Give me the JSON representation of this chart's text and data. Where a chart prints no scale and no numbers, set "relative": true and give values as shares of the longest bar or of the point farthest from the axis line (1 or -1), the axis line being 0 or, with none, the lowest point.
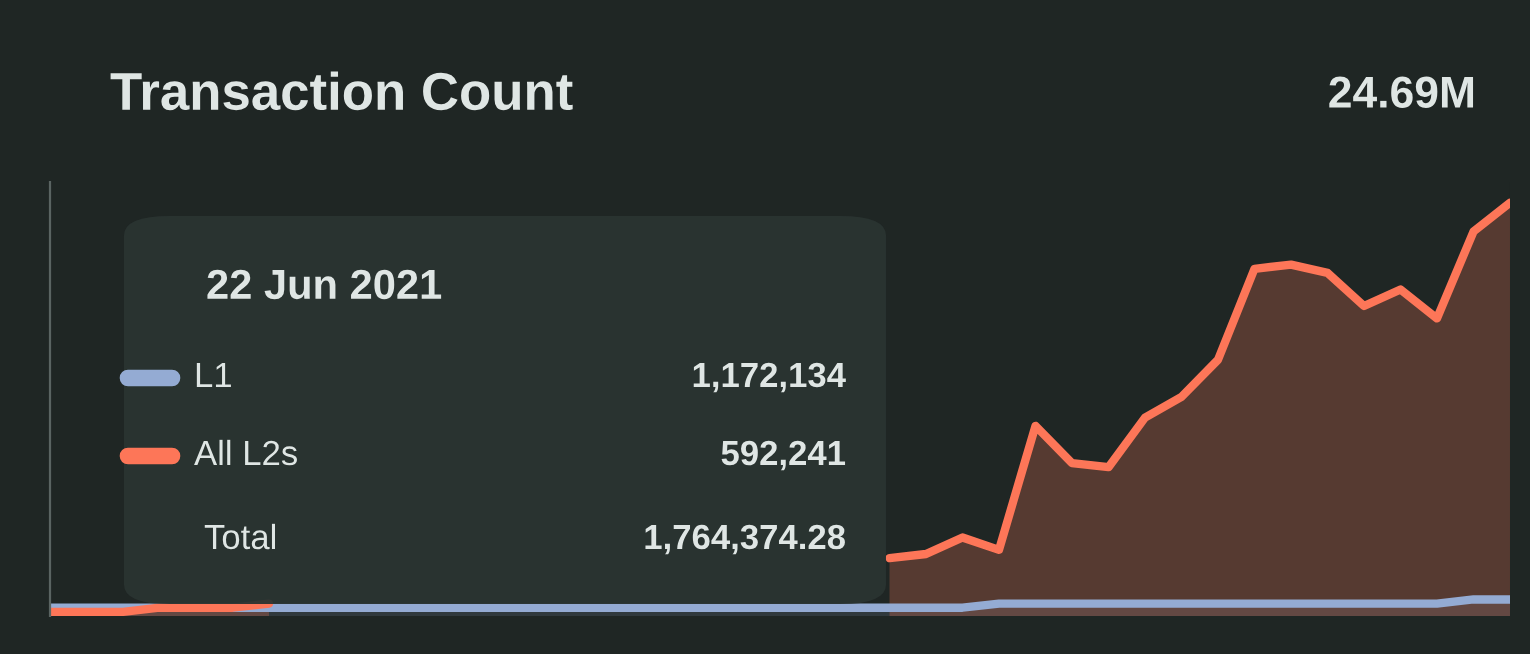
{
  "chart_data": {
    "type": "area",
    "title": "Transaction Count",
    "relative": true,
    "legend": "left",
    "legend_title": "22 Jun 2021",
    "categories": [
      null,
      null,
      null,
      null,
      null,
      null,
      null,
      null,
      null,
      null,
      null,
      null,
      null,
      null,
      null,
      null,
      null,
      null,
      null,
      null,
      null,
      null,
      null,
      null,
      null,
      null,
      null,
      null,
      null,
      null,
      null,
      null,
      null,
      null,
      null,
      null,
      null,
      null,
      null,
      null,
      null
    ],
    "series": [
      {
        "name": "L1",
        "color": "#94abd3",
        "values": [
          0.02,
          0.02,
          0.02,
          0.02,
          0.02,
          0.02,
          0.02,
          0.02,
          0.02,
          0.02,
          0.02,
          0.02,
          0.02,
          0.02,
          0.02,
          0.02,
          0.02,
          0.02,
          0.02,
          0.02,
          0.02,
          0.02,
          0.02,
          0.02,
          0.02,
          0.02,
          0.03,
          0.03,
          0.03,
          0.03,
          0.03,
          0.03,
          0.03,
          0.03,
          0.03,
          0.03,
          0.03,
          0.03,
          0.03,
          0.04,
          0.04
        ]
      },
      {
        "name": "All L2s",
        "color": "#fd7658",
        "values": [
          0.01,
          0.01,
          0.01,
          0.02,
          0.02,
          0.02,
          0.03,
          null,
          null,
          null,
          null,
          null,
          null,
          null,
          null,
          null,
          null,
          null,
          null,
          null,
          null,
          null,
          null,
          0.14,
          0.15,
          0.19,
          0.16,
          0.46,
          0.37,
          0.36,
          0.48,
          0.53,
          0.62,
          0.84,
          0.85,
          0.83,
          0.75,
          0.79,
          0.72,
          0.93,
          1.0
        ]
      }
    ],
    "annotations": [
      "1,172,134",
      "592,241",
      "Total",
      "1,764,374.28",
      "24.69M"
    ]
  }
}
